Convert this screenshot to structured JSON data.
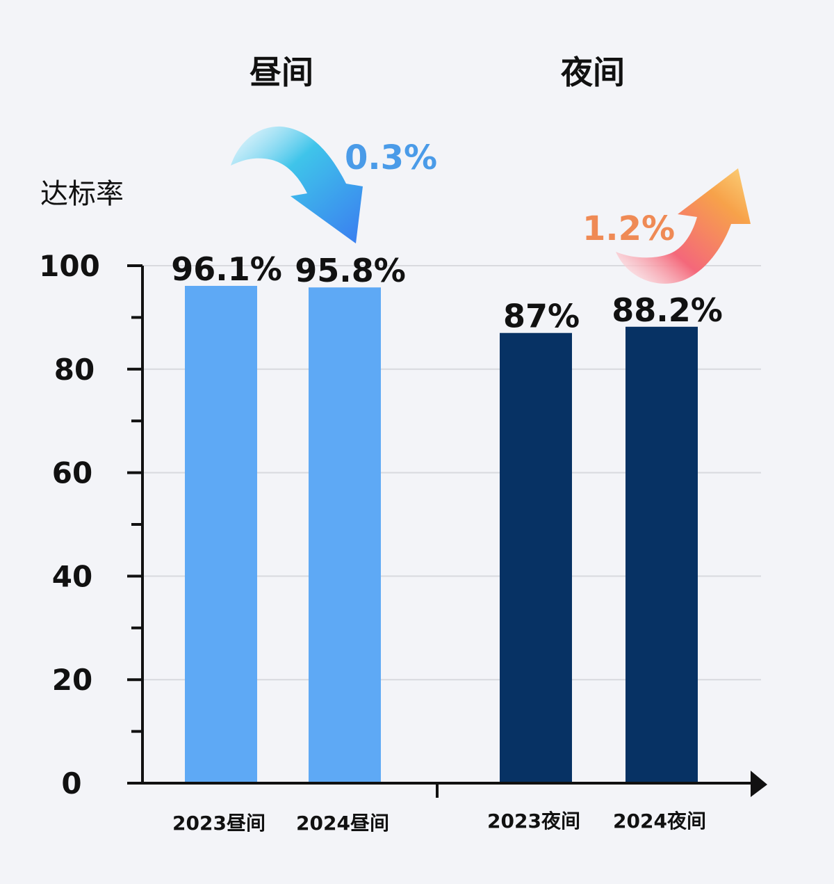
{
  "chart_data": {
    "type": "bar",
    "ylabel": "达标率",
    "ylim": [
      0,
      100
    ],
    "yticks": [
      0,
      20,
      40,
      60,
      80,
      100
    ],
    "grid": true,
    "groups": [
      {
        "title": "昼间",
        "change_label": "0.3%",
        "direction": "down"
      },
      {
        "title": "夜间",
        "change_label": "1.2%",
        "direction": "up"
      }
    ],
    "categories": [
      "2023昼间",
      "2024昼间",
      "2023夜间",
      "2024夜间"
    ],
    "values": [
      96.1,
      95.8,
      87,
      88.2
    ],
    "value_labels": [
      "96.1%",
      "95.8%",
      "87%",
      "88.2%"
    ],
    "bar_colors": [
      "#5ea9f5",
      "#5ea9f5",
      "#073264",
      "#073264"
    ]
  },
  "colors": {
    "day_change": "#4a9be8",
    "night_change": "#ef8a55"
  }
}
